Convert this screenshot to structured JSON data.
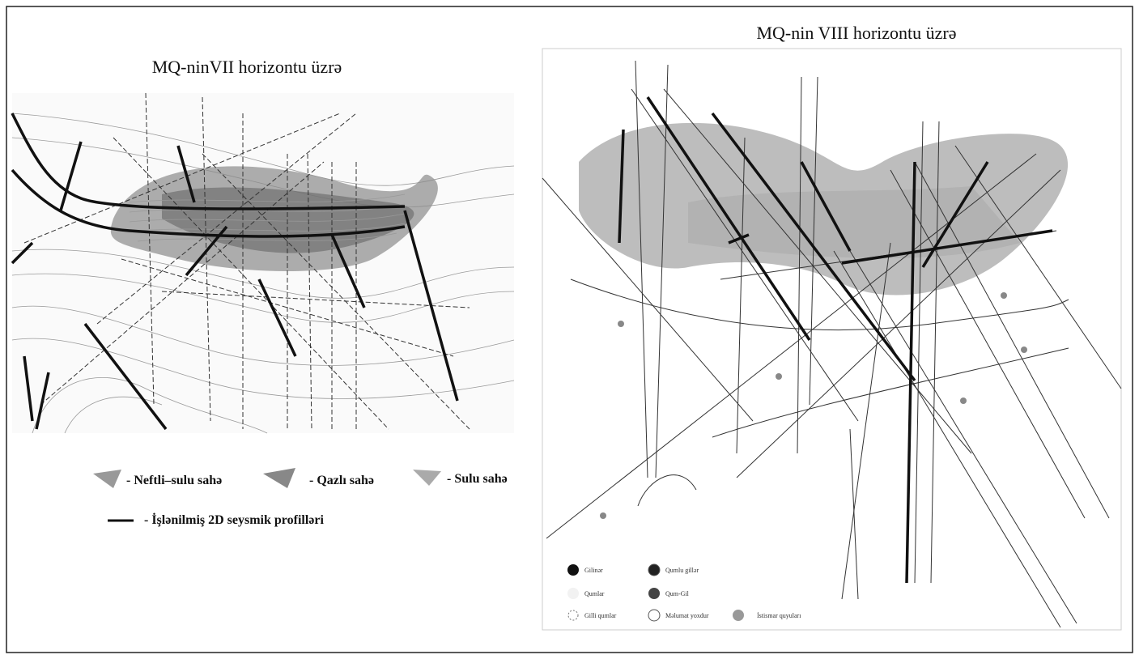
{
  "left_map": {
    "title": "MQ-ninVII horizontu üzrə",
    "legend": [
      "- Neftli–sulu sahə",
      "- Qazlı sahə",
      "- Sulu sahə",
      "- İşlənilmiş 2D seysmik profilləri"
    ]
  },
  "right_map": {
    "title": "MQ-nin VIII horizontu üzrə",
    "legend": [
      "Gilinər",
      "Qumlu gillər",
      "Qumlar",
      "Qum-Gil",
      "Gilli qumlar",
      "Məlumat yoxdur",
      "İstismar quyuları"
    ]
  }
}
